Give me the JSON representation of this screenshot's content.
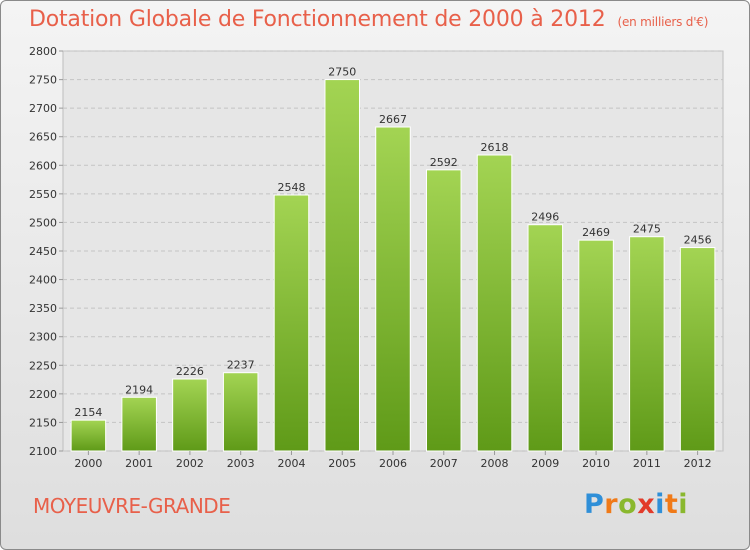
{
  "title": "Dotation Globale de Fonctionnement de 2000 à 2012",
  "subtitle": "(en milliers d'€)",
  "footer": {
    "city": "MOYEUVRE-GRANDE",
    "brand_letters": [
      "P",
      "r",
      "o",
      "x",
      "i",
      "t",
      "i"
    ],
    "brand_colors": [
      "#2f8fd8",
      "#f07a18",
      "#8ab82e",
      "#e23b2a",
      "#2f8fd8",
      "#f07a18",
      "#8ab82e"
    ]
  },
  "chart_data": {
    "type": "bar",
    "title": "Dotation Globale de Fonctionnement de 2000 à 2012",
    "subtitle": "(en milliers d'€)",
    "categories": [
      "2000",
      "2001",
      "2002",
      "2003",
      "2004",
      "2005",
      "2006",
      "2007",
      "2008",
      "2009",
      "2010",
      "2011",
      "2012"
    ],
    "values": [
      2154,
      2194,
      2226,
      2237,
      2548,
      2750,
      2667,
      2592,
      2618,
      2496,
      2469,
      2475,
      2456
    ],
    "ylim": [
      2100,
      2800
    ],
    "yticks": [
      2100,
      2150,
      2200,
      2250,
      2300,
      2350,
      2400,
      2450,
      2500,
      2550,
      2600,
      2650,
      2700,
      2750,
      2800
    ],
    "grid": true,
    "data_labels": true,
    "bar_color": "#8cc43c"
  }
}
